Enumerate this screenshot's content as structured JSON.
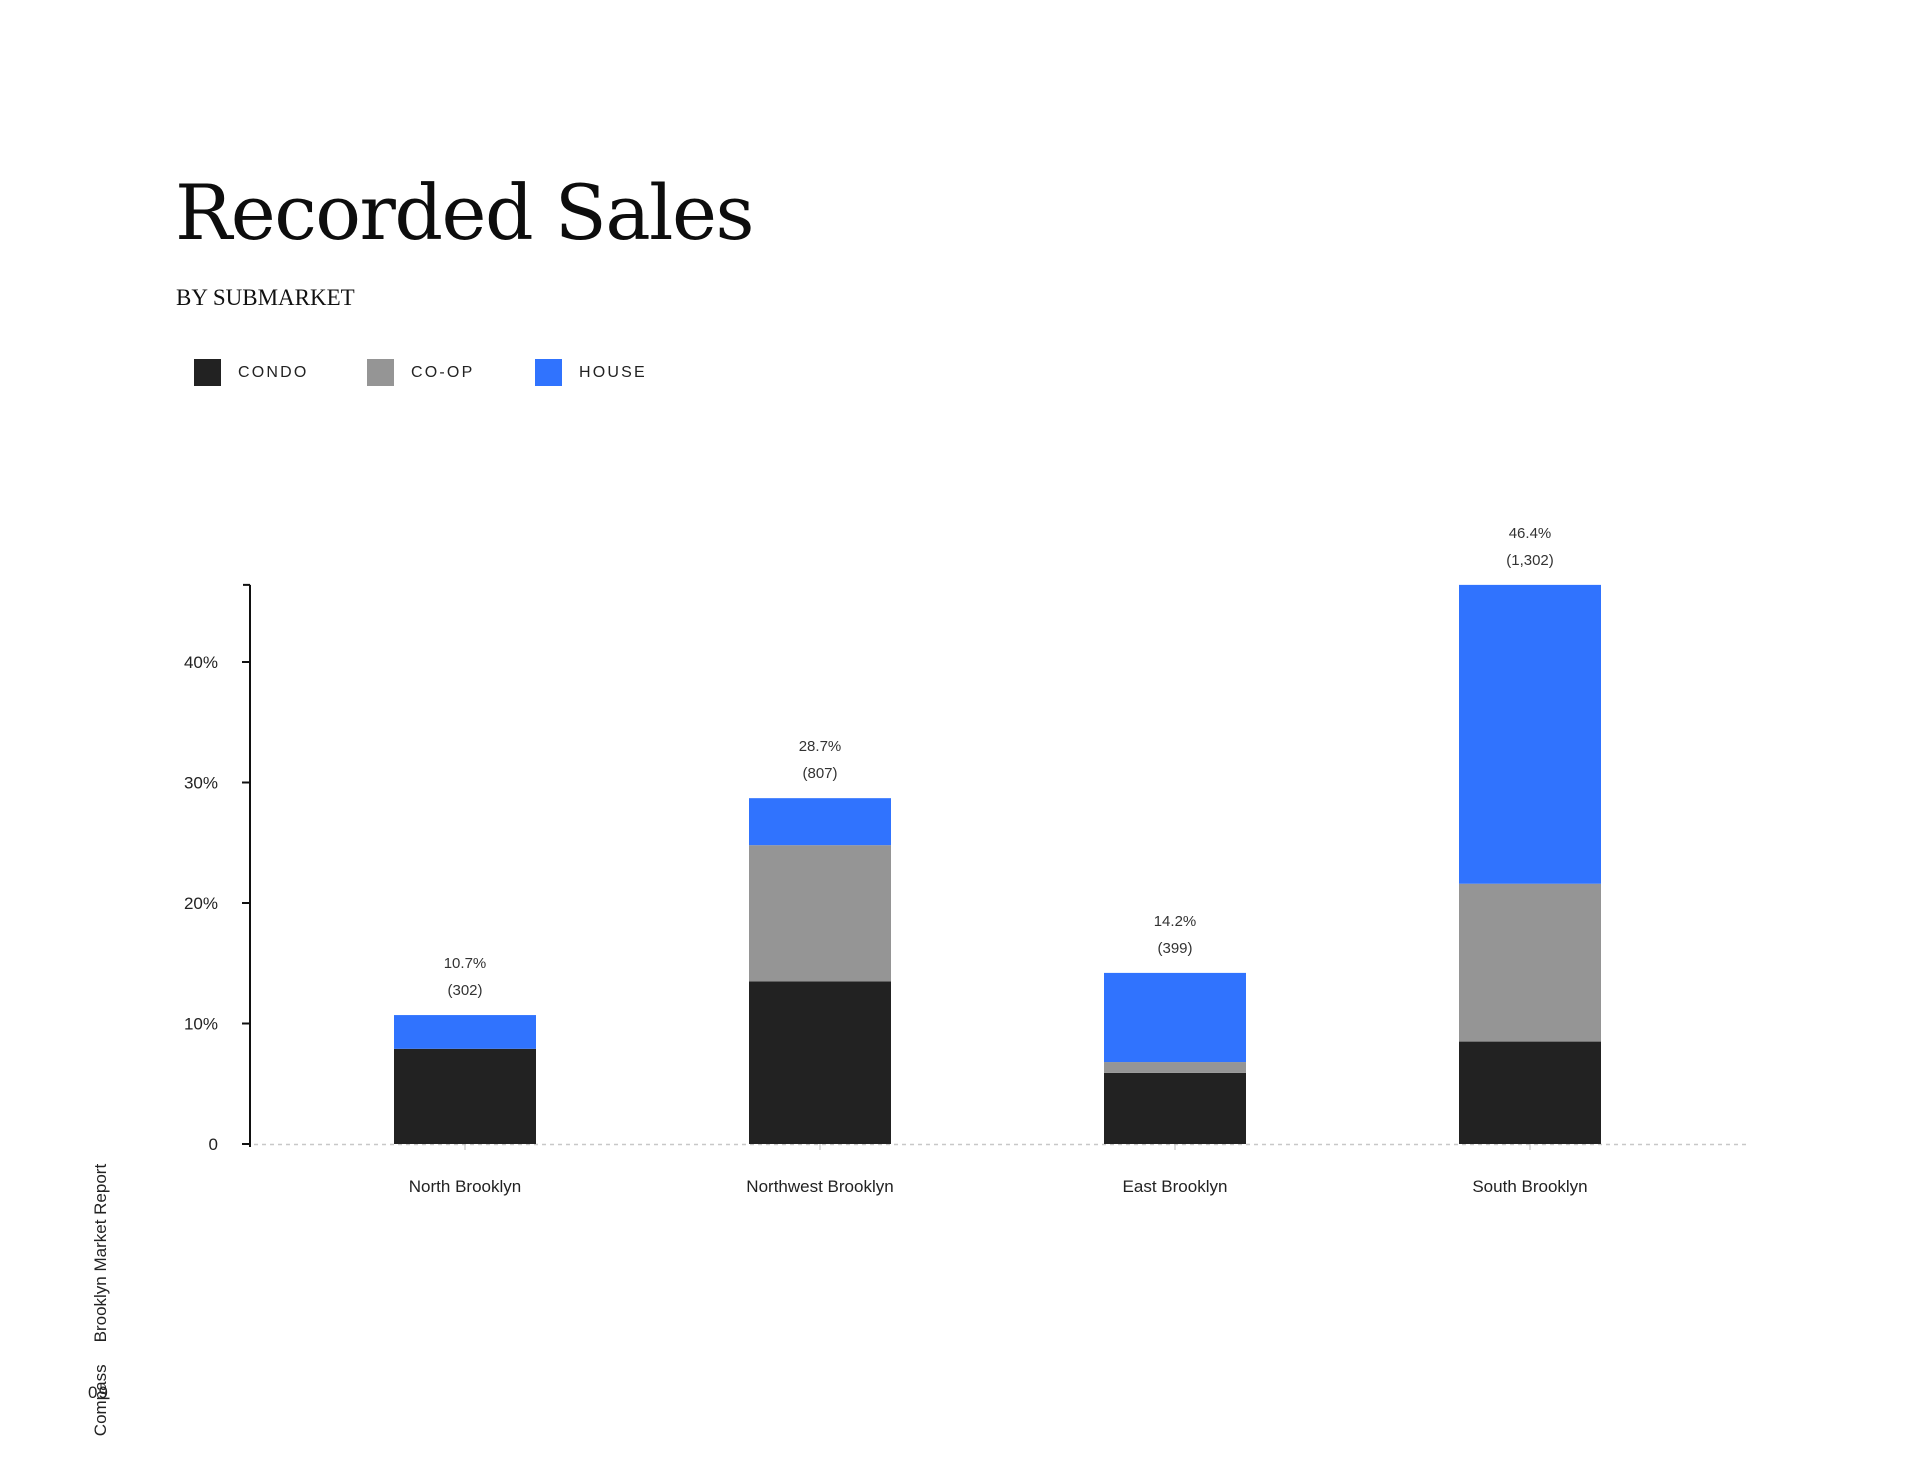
{
  "page": {
    "title": "Recorded Sales",
    "subtitle": "BY SUBMARKET",
    "footer_brand": "Compass",
    "footer_report": "Brooklyn Market Report",
    "page_number": "09"
  },
  "legend": [
    {
      "label": "CONDO",
      "color": "#222222"
    },
    {
      "label": "CO-OP",
      "color": "#959595"
    },
    {
      "label": "HOUSE",
      "color": "#3073fe"
    }
  ],
  "chart_data": {
    "type": "bar",
    "stacked": true,
    "categories": [
      "North Brooklyn",
      "Northwest Brooklyn",
      "East Brooklyn",
      "South Brooklyn"
    ],
    "series": [
      {
        "name": "CONDO",
        "color": "#222222",
        "values": [
          7.9,
          13.5,
          5.9,
          8.5
        ]
      },
      {
        "name": "CO-OP",
        "color": "#959595",
        "values": [
          0.0,
          11.3,
          0.9,
          13.1
        ]
      },
      {
        "name": "HOUSE",
        "color": "#3073fe",
        "values": [
          2.8,
          3.9,
          7.4,
          24.8
        ]
      }
    ],
    "totals": [
      {
        "percent": "10.7%",
        "count": "(302)"
      },
      {
        "percent": "28.7%",
        "count": "(807)"
      },
      {
        "percent": "14.2%",
        "count": "(399)"
      },
      {
        "percent": "46.4%",
        "count": "(1,302)"
      }
    ],
    "ylim": [
      0,
      46.4
    ],
    "yticks": [
      {
        "value": 0,
        "label": "0"
      },
      {
        "value": 10,
        "label": "10%"
      },
      {
        "value": 20,
        "label": "20%"
      },
      {
        "value": 30,
        "label": "30%"
      },
      {
        "value": 40,
        "label": "40%"
      }
    ],
    "xlabel": "",
    "ylabel": "",
    "grid": false,
    "legend_position": "top-left"
  }
}
